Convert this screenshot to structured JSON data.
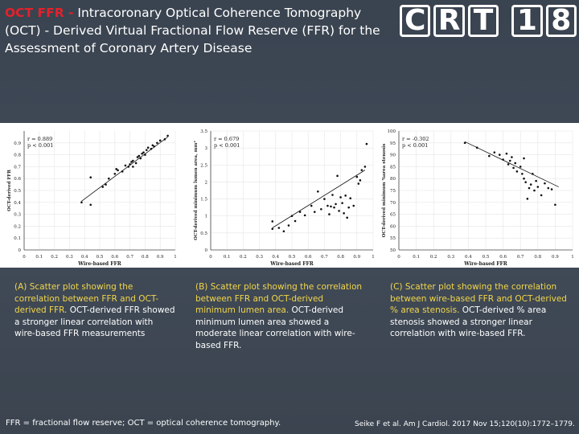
{
  "title": {
    "accent": "OCT FFR -",
    "rest": " Intracoronary Optical Coherence Tomography (OCT) - Derived Virtual Fractional Flow Reserve (FFR) for the Assessment of Coronary Artery Disease"
  },
  "logo": {
    "chars": [
      "C",
      "R",
      "T",
      "1",
      "8"
    ]
  },
  "chart_data": [
    {
      "type": "scatter",
      "panel": "A",
      "xlabel": "Wire-based FFR",
      "ylabel": "OCT-derived FFR",
      "stats": [
        "r = 0.889",
        "p < 0.001"
      ],
      "xlim": [
        0,
        1.0
      ],
      "ylim": [
        0,
        1.0
      ],
      "xticks": [
        "0",
        "0.1",
        "0.2",
        "0.3",
        "0.4",
        "0.5",
        "0.6",
        "0.7",
        "0.8",
        "0.9",
        "1"
      ],
      "yticks": [
        "0",
        "0.1",
        "0.2",
        "0.3",
        "0.4",
        "0.5",
        "0.6",
        "0.7",
        "0.8",
        "0.9"
      ],
      "trend": [
        [
          0.38,
          0.41
        ],
        [
          0.95,
          0.95
        ]
      ],
      "points": [
        [
          0.38,
          0.4
        ],
        [
          0.44,
          0.38
        ],
        [
          0.44,
          0.61
        ],
        [
          0.52,
          0.53
        ],
        [
          0.54,
          0.55
        ],
        [
          0.56,
          0.6
        ],
        [
          0.6,
          0.64
        ],
        [
          0.61,
          0.68
        ],
        [
          0.62,
          0.67
        ],
        [
          0.65,
          0.66
        ],
        [
          0.67,
          0.71
        ],
        [
          0.69,
          0.7
        ],
        [
          0.7,
          0.72
        ],
        [
          0.71,
          0.74
        ],
        [
          0.72,
          0.75
        ],
        [
          0.72,
          0.7
        ],
        [
          0.74,
          0.73
        ],
        [
          0.75,
          0.78
        ],
        [
          0.76,
          0.79
        ],
        [
          0.77,
          0.77
        ],
        [
          0.78,
          0.81
        ],
        [
          0.79,
          0.82
        ],
        [
          0.8,
          0.8
        ],
        [
          0.81,
          0.84
        ],
        [
          0.82,
          0.86
        ],
        [
          0.84,
          0.85
        ],
        [
          0.85,
          0.88
        ],
        [
          0.86,
          0.87
        ],
        [
          0.88,
          0.9
        ],
        [
          0.9,
          0.92
        ],
        [
          0.93,
          0.93
        ],
        [
          0.95,
          0.96
        ]
      ]
    },
    {
      "type": "scatter",
      "panel": "B",
      "xlabel": "Wire-based FFR",
      "ylabel": "OCT-derived minimum lumen area, mm²",
      "stats": [
        "r = 0.679",
        "p < 0.001"
      ],
      "xlim": [
        0,
        1.0
      ],
      "ylim": [
        0,
        3.5
      ],
      "xticks": [
        "0",
        "0.1",
        "0.2",
        "0.3",
        "0.4",
        "0.5",
        "0.6",
        "0.7",
        "0.8",
        "0.9",
        "1"
      ],
      "yticks": [
        "0",
        "0.5",
        "1",
        "1.5",
        "2",
        "2.5",
        "3",
        "3.5"
      ],
      "trend": [
        [
          0.38,
          0.65
        ],
        [
          0.95,
          2.35
        ]
      ],
      "points": [
        [
          0.38,
          0.62
        ],
        [
          0.38,
          0.84
        ],
        [
          0.42,
          0.65
        ],
        [
          0.45,
          0.55
        ],
        [
          0.48,
          0.72
        ],
        [
          0.5,
          1.0
        ],
        [
          0.52,
          0.85
        ],
        [
          0.55,
          1.12
        ],
        [
          0.58,
          1.02
        ],
        [
          0.62,
          1.3
        ],
        [
          0.64,
          1.12
        ],
        [
          0.66,
          1.72
        ],
        [
          0.68,
          1.2
        ],
        [
          0.7,
          1.5
        ],
        [
          0.72,
          1.3
        ],
        [
          0.73,
          1.05
        ],
        [
          0.74,
          1.28
        ],
        [
          0.75,
          1.62
        ],
        [
          0.76,
          1.25
        ],
        [
          0.77,
          1.35
        ],
        [
          0.78,
          2.18
        ],
        [
          0.79,
          1.15
        ],
        [
          0.8,
          1.55
        ],
        [
          0.81,
          1.38
        ],
        [
          0.82,
          1.08
        ],
        [
          0.83,
          1.6
        ],
        [
          0.84,
          0.95
        ],
        [
          0.85,
          1.25
        ],
        [
          0.86,
          1.52
        ],
        [
          0.88,
          1.3
        ],
        [
          0.9,
          2.15
        ],
        [
          0.91,
          1.95
        ],
        [
          0.92,
          2.05
        ],
        [
          0.93,
          2.35
        ],
        [
          0.95,
          2.45
        ],
        [
          0.96,
          3.12
        ]
      ]
    },
    {
      "type": "scatter",
      "panel": "C",
      "xlabel": "Wire-based FFR",
      "ylabel": "OCT-derived minimum %area stenosis",
      "stats": [
        "r = -0.302",
        "p < 0.001"
      ],
      "xlim": [
        0,
        1.0
      ],
      "ylim": [
        50,
        100
      ],
      "xticks": [
        "0",
        "0.1",
        "0.2",
        "0.3",
        "0.4",
        "0.5",
        "0.6",
        "0.7",
        "0.8",
        "0.9",
        "1"
      ],
      "yticks": [
        "50",
        "55",
        "60",
        "65",
        "70",
        "75",
        "80",
        "85",
        "90",
        "95",
        "100"
      ],
      "trend": [
        [
          0.38,
          95.5
        ],
        [
          0.92,
          76.5
        ]
      ],
      "points": [
        [
          0.38,
          95.0
        ],
        [
          0.45,
          93.0
        ],
        [
          0.52,
          89.5
        ],
        [
          0.55,
          91.0
        ],
        [
          0.58,
          90.0
        ],
        [
          0.6,
          88.0
        ],
        [
          0.62,
          90.5
        ],
        [
          0.63,
          86.0
        ],
        [
          0.64,
          87.5
        ],
        [
          0.65,
          89.0
        ],
        [
          0.66,
          84.5
        ],
        [
          0.67,
          86.5
        ],
        [
          0.68,
          83.0
        ],
        [
          0.7,
          85.0
        ],
        [
          0.71,
          82.0
        ],
        [
          0.72,
          88.5
        ],
        [
          0.72,
          80.0
        ],
        [
          0.73,
          78.5
        ],
        [
          0.74,
          71.5
        ],
        [
          0.75,
          76.0
        ],
        [
          0.76,
          77.5
        ],
        [
          0.77,
          82.0
        ],
        [
          0.78,
          75.0
        ],
        [
          0.79,
          79.0
        ],
        [
          0.8,
          76.5
        ],
        [
          0.82,
          73.0
        ],
        [
          0.84,
          78.0
        ],
        [
          0.86,
          76.0
        ],
        [
          0.88,
          75.5
        ],
        [
          0.9,
          69.0
        ]
      ]
    }
  ],
  "captions": [
    {
      "lead": "(A) Scatter plot showing the correlation between FFR and OCT-derived FFR.",
      "rest": " OCT-derived FFR showed a stronger linear correlation with wire-based FFR measurements"
    },
    {
      "lead": "(B) Scatter plot showing the correlation between FFR and OCT-derived minimum lumen area.",
      "rest": " OCT-derived minimum lumen area showed a moderate linear correlation with wire-based FFR."
    },
    {
      "lead": "(C) Scatter plot showing the correlation between wire-based FFR and OCT-derived % area stenosis.",
      "rest": " OCT-derived % area stenosis showed a stronger linear correlation with wire-based FFR."
    }
  ],
  "footer": {
    "abbrev": "FFR = fractional flow reserve; OCT = optical coherence tomography.",
    "citation": "Seike F et al. Am J Cardiol. 2017 Nov 15;120(10):1772–1779."
  }
}
